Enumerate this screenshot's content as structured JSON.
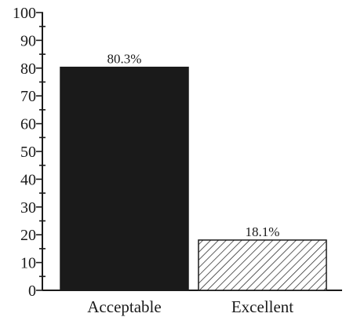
{
  "chart_data": {
    "type": "bar",
    "title": "",
    "xlabel": "",
    "ylabel": "",
    "ylim": [
      0,
      100
    ],
    "yticks": [
      0,
      10,
      20,
      30,
      40,
      50,
      60,
      70,
      80,
      90,
      100
    ],
    "minor_ticks": true,
    "grid": false,
    "categories": [
      "Acceptable",
      "Excellent"
    ],
    "values": [
      80.3,
      18.1
    ],
    "data_labels": [
      "80.3%",
      "18.1%"
    ],
    "bar_styles": [
      "solid-black",
      "diagonal-hatch"
    ],
    "colors": {
      "bar_fill": "#1a1a1a",
      "axis": "#1a1a1a",
      "background": "#ffffff"
    }
  }
}
